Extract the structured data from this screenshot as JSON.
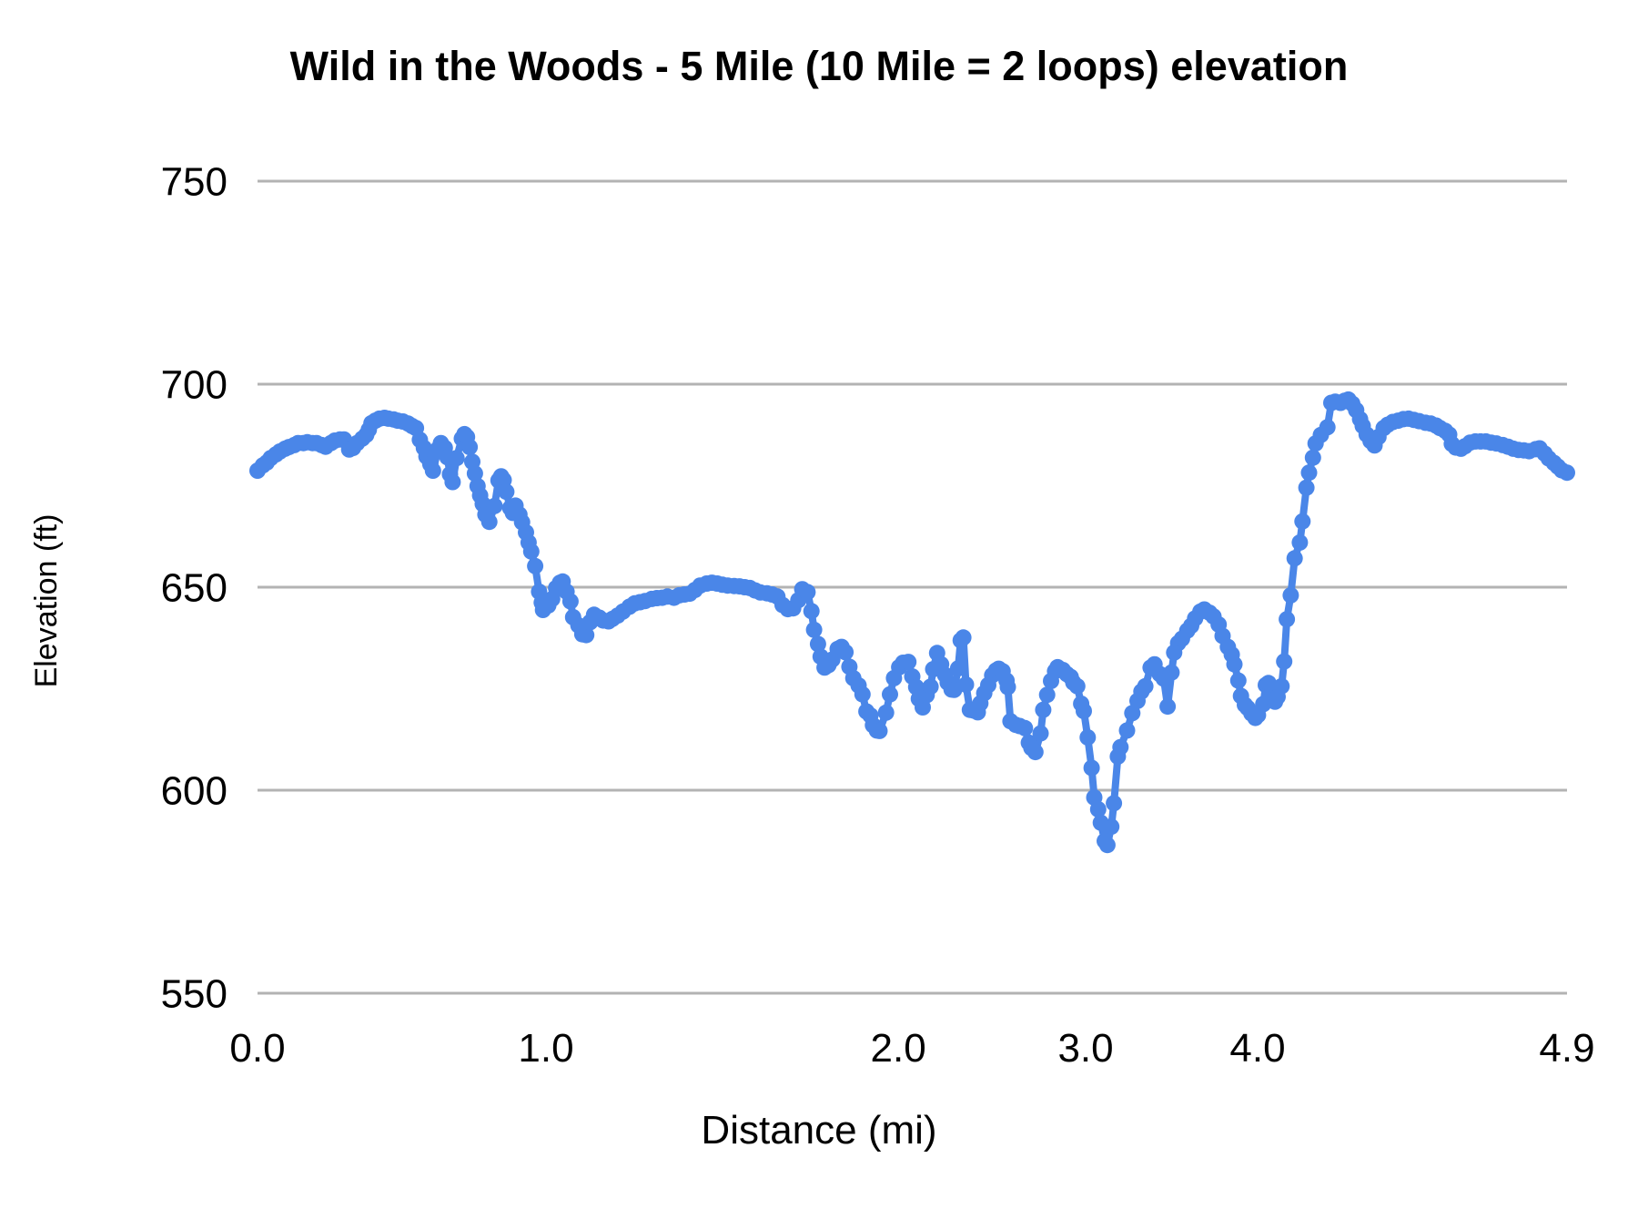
{
  "page": {
    "background": "#ffffff"
  },
  "chart_data": {
    "type": "line",
    "title": "Wild in the Woods - 5 Mile (10 Mile = 2 loops) elevation",
    "xlabel": "Distance (mi)",
    "ylabel": "Elevation (ft)",
    "ylim": [
      550,
      750
    ],
    "y_ticks": [
      550,
      600,
      650,
      700,
      750
    ],
    "x_ticks": [
      {
        "label": "0.0",
        "f": 0.0
      },
      {
        "label": "1.0",
        "f": 0.2203
      },
      {
        "label": "2.0",
        "f": 0.4893
      },
      {
        "label": "3.0",
        "f": 0.6324
      },
      {
        "label": "4.0",
        "f": 0.7637
      },
      {
        "label": "4.9",
        "f": 1.0
      }
    ],
    "legend": "none",
    "grid": true,
    "marker": "circle",
    "elevation_min_ft": 586,
    "elevation_max_ft": 696,
    "line_color": "#4a86e8",
    "grid_color": "#b3b3b3",
    "text_color": "#000000",
    "points": [
      [
        0.0,
        678.7
      ],
      [
        0.004,
        680.0
      ],
      [
        0.007,
        680.7
      ],
      [
        0.01,
        681.8
      ],
      [
        0.014,
        682.7
      ],
      [
        0.017,
        683.4
      ],
      [
        0.021,
        684.1
      ],
      [
        0.024,
        684.5
      ],
      [
        0.028,
        685.0
      ],
      [
        0.031,
        685.5
      ],
      [
        0.035,
        685.5
      ],
      [
        0.038,
        685.7
      ],
      [
        0.042,
        685.5
      ],
      [
        0.045,
        685.5
      ],
      [
        0.049,
        685.0
      ],
      [
        0.052,
        684.6
      ],
      [
        0.056,
        685.5
      ],
      [
        0.059,
        686.1
      ],
      [
        0.063,
        686.4
      ],
      [
        0.066,
        686.4
      ],
      [
        0.07,
        683.9
      ],
      [
        0.073,
        684.3
      ],
      [
        0.076,
        685.5
      ],
      [
        0.08,
        686.6
      ],
      [
        0.083,
        687.5
      ],
      [
        0.085,
        688.8
      ],
      [
        0.087,
        690.4
      ],
      [
        0.09,
        691.0
      ],
      [
        0.093,
        691.5
      ],
      [
        0.097,
        691.7
      ],
      [
        0.1,
        691.5
      ],
      [
        0.104,
        691.3
      ],
      [
        0.107,
        691.0
      ],
      [
        0.111,
        690.8
      ],
      [
        0.115,
        690.3
      ],
      [
        0.118,
        689.7
      ],
      [
        0.121,
        689.2
      ],
      [
        0.124,
        686.3
      ],
      [
        0.127,
        684.3
      ],
      [
        0.129,
        682.2
      ],
      [
        0.131,
        681.5
      ],
      [
        0.132,
        680.3
      ],
      [
        0.134,
        678.7
      ],
      [
        0.138,
        684.1
      ],
      [
        0.14,
        685.5
      ],
      [
        0.143,
        684.3
      ],
      [
        0.145,
        682.0
      ],
      [
        0.147,
        677.8
      ],
      [
        0.149,
        675.9
      ],
      [
        0.152,
        681.8
      ],
      [
        0.156,
        686.6
      ],
      [
        0.158,
        687.7
      ],
      [
        0.16,
        687.0
      ],
      [
        0.162,
        684.5
      ],
      [
        0.164,
        680.9
      ],
      [
        0.166,
        678.0
      ],
      [
        0.168,
        674.9
      ],
      [
        0.17,
        672.6
      ],
      [
        0.172,
        670.5
      ],
      [
        0.174,
        667.9
      ],
      [
        0.177,
        666.1
      ],
      [
        0.181,
        670.0
      ],
      [
        0.184,
        676.3
      ],
      [
        0.186,
        677.3
      ],
      [
        0.188,
        676.4
      ],
      [
        0.19,
        673.5
      ],
      [
        0.193,
        669.5
      ],
      [
        0.195,
        668.3
      ],
      [
        0.197,
        670.1
      ],
      [
        0.2,
        667.9
      ],
      [
        0.202,
        666.0
      ],
      [
        0.205,
        663.5
      ],
      [
        0.207,
        661.0
      ],
      [
        0.209,
        658.8
      ],
      [
        0.212,
        655.2
      ],
      [
        0.215,
        648.9
      ],
      [
        0.217,
        646.2
      ],
      [
        0.218,
        644.4
      ],
      [
        0.222,
        645.5
      ],
      [
        0.225,
        647.1
      ],
      [
        0.228,
        649.8
      ],
      [
        0.231,
        651.1
      ],
      [
        0.233,
        651.4
      ],
      [
        0.236,
        648.9
      ],
      [
        0.239,
        646.5
      ],
      [
        0.241,
        642.6
      ],
      [
        0.245,
        640.6
      ],
      [
        0.248,
        638.4
      ],
      [
        0.251,
        638.2
      ],
      [
        0.254,
        641.4
      ],
      [
        0.257,
        643.2
      ],
      [
        0.261,
        642.5
      ],
      [
        0.264,
        641.8
      ],
      [
        0.268,
        641.6
      ],
      [
        0.271,
        642.2
      ],
      [
        0.275,
        643.0
      ],
      [
        0.279,
        644.0
      ],
      [
        0.284,
        645.2
      ],
      [
        0.288,
        646.0
      ],
      [
        0.292,
        646.3
      ],
      [
        0.296,
        646.6
      ],
      [
        0.301,
        647.1
      ],
      [
        0.305,
        647.3
      ],
      [
        0.309,
        647.4
      ],
      [
        0.313,
        647.7
      ],
      [
        0.318,
        647.4
      ],
      [
        0.322,
        648.0
      ],
      [
        0.326,
        648.2
      ],
      [
        0.33,
        648.4
      ],
      [
        0.334,
        649.3
      ],
      [
        0.338,
        650.4
      ],
      [
        0.343,
        650.9
      ],
      [
        0.347,
        651.1
      ],
      [
        0.351,
        650.9
      ],
      [
        0.355,
        650.6
      ],
      [
        0.359,
        650.4
      ],
      [
        0.364,
        650.3
      ],
      [
        0.368,
        650.2
      ],
      [
        0.372,
        650.0
      ],
      [
        0.376,
        649.8
      ],
      [
        0.38,
        649.2
      ],
      [
        0.384,
        648.7
      ],
      [
        0.389,
        648.5
      ],
      [
        0.393,
        648.2
      ],
      [
        0.397,
        647.7
      ],
      [
        0.401,
        645.6
      ],
      [
        0.405,
        644.6
      ],
      [
        0.409,
        644.8
      ],
      [
        0.413,
        646.8
      ],
      [
        0.416,
        649.5
      ],
      [
        0.42,
        648.8
      ],
      [
        0.423,
        644.1
      ],
      [
        0.425,
        639.5
      ],
      [
        0.428,
        636.0
      ],
      [
        0.43,
        632.9
      ],
      [
        0.433,
        630.2
      ],
      [
        0.436,
        630.8
      ],
      [
        0.439,
        632.2
      ],
      [
        0.443,
        634.8
      ],
      [
        0.446,
        635.3
      ],
      [
        0.449,
        634.0
      ],
      [
        0.452,
        630.4
      ],
      [
        0.455,
        627.6
      ],
      [
        0.459,
        625.8
      ],
      [
        0.462,
        623.6
      ],
      [
        0.465,
        619.4
      ],
      [
        0.468,
        618.4
      ],
      [
        0.47,
        616.0
      ],
      [
        0.473,
        614.7
      ],
      [
        0.475,
        614.6
      ],
      [
        0.48,
        619.1
      ],
      [
        0.483,
        623.6
      ],
      [
        0.486,
        627.6
      ],
      [
        0.49,
        630.3
      ],
      [
        0.493,
        631.4
      ],
      [
        0.497,
        631.6
      ],
      [
        0.5,
        628.0
      ],
      [
        0.503,
        625.4
      ],
      [
        0.505,
        622.5
      ],
      [
        0.508,
        620.4
      ],
      [
        0.511,
        623.4
      ],
      [
        0.514,
        625.5
      ],
      [
        0.516,
        629.8
      ],
      [
        0.519,
        633.8
      ],
      [
        0.522,
        631.0
      ],
      [
        0.525,
        628.4
      ],
      [
        0.527,
        626.5
      ],
      [
        0.53,
        624.8
      ],
      [
        0.532,
        624.7
      ],
      [
        0.535,
        630.0
      ],
      [
        0.537,
        636.9
      ],
      [
        0.539,
        637.6
      ],
      [
        0.541,
        626.0
      ],
      [
        0.544,
        619.8
      ],
      [
        0.547,
        619.6
      ],
      [
        0.55,
        619.2
      ],
      [
        0.552,
        621.4
      ],
      [
        0.555,
        623.9
      ],
      [
        0.558,
        625.9
      ],
      [
        0.561,
        628.3
      ],
      [
        0.564,
        629.5
      ],
      [
        0.566,
        629.9
      ],
      [
        0.569,
        629.3
      ],
      [
        0.572,
        627.0
      ],
      [
        0.573,
        625.4
      ],
      [
        0.575,
        617.0
      ],
      [
        0.579,
        616.1
      ],
      [
        0.582,
        615.8
      ],
      [
        0.586,
        615.3
      ],
      [
        0.589,
        611.7
      ],
      [
        0.591,
        610.4
      ],
      [
        0.594,
        609.4
      ],
      [
        0.598,
        614.0
      ],
      [
        0.6,
        619.8
      ],
      [
        0.603,
        623.5
      ],
      [
        0.606,
        626.9
      ],
      [
        0.609,
        629.3
      ],
      [
        0.611,
        630.3
      ],
      [
        0.615,
        629.6
      ],
      [
        0.618,
        628.6
      ],
      [
        0.621,
        627.9
      ],
      [
        0.623,
        626.5
      ],
      [
        0.626,
        625.6
      ],
      [
        0.629,
        621.3
      ],
      [
        0.631,
        619.5
      ],
      [
        0.634,
        613.0
      ],
      [
        0.637,
        605.5
      ],
      [
        0.639,
        598.2
      ],
      [
        0.642,
        595.3
      ],
      [
        0.644,
        592.0
      ],
      [
        0.647,
        587.5
      ],
      [
        0.649,
        586.5
      ],
      [
        0.652,
        591.0
      ],
      [
        0.654,
        596.8
      ],
      [
        0.657,
        608.3
      ],
      [
        0.659,
        610.6
      ],
      [
        0.664,
        614.7
      ],
      [
        0.668,
        619.0
      ],
      [
        0.672,
        622.0
      ],
      [
        0.675,
        624.3
      ],
      [
        0.678,
        625.6
      ],
      [
        0.682,
        630.2
      ],
      [
        0.685,
        631.0
      ],
      [
        0.689,
        628.6
      ],
      [
        0.692,
        627.5
      ],
      [
        0.695,
        620.6
      ],
      [
        0.698,
        629.0
      ],
      [
        0.7,
        633.9
      ],
      [
        0.703,
        636.2
      ],
      [
        0.706,
        637.3
      ],
      [
        0.71,
        639.3
      ],
      [
        0.713,
        640.5
      ],
      [
        0.716,
        642.3
      ],
      [
        0.72,
        644.0
      ],
      [
        0.723,
        644.5
      ],
      [
        0.727,
        643.7
      ],
      [
        0.73,
        642.8
      ],
      [
        0.734,
        640.8
      ],
      [
        0.737,
        638.0
      ],
      [
        0.741,
        635.3
      ],
      [
        0.744,
        633.4
      ],
      [
        0.746,
        631.0
      ],
      [
        0.749,
        627.0
      ],
      [
        0.751,
        623.2
      ],
      [
        0.754,
        621.0
      ],
      [
        0.756,
        620.3
      ],
      [
        0.759,
        618.9
      ],
      [
        0.762,
        617.8
      ],
      [
        0.764,
        618.5
      ],
      [
        0.768,
        621.2
      ],
      [
        0.77,
        625.9
      ],
      [
        0.772,
        626.4
      ],
      [
        0.775,
        624.1
      ],
      [
        0.777,
        621.8
      ],
      [
        0.779,
        623.0
      ],
      [
        0.782,
        625.6
      ],
      [
        0.784,
        631.7
      ],
      [
        0.786,
        642.1
      ],
      [
        0.789,
        648.0
      ],
      [
        0.792,
        657.1
      ],
      [
        0.796,
        661.0
      ],
      [
        0.798,
        666.2
      ],
      [
        0.801,
        674.5
      ],
      [
        0.803,
        678.2
      ],
      [
        0.806,
        681.9
      ],
      [
        0.808,
        685.4
      ],
      [
        0.812,
        687.5
      ],
      [
        0.817,
        689.4
      ],
      [
        0.82,
        695.4
      ],
      [
        0.823,
        695.7
      ],
      [
        0.827,
        695.4
      ],
      [
        0.83,
        695.9
      ],
      [
        0.833,
        696.2
      ],
      [
        0.836,
        695.2
      ],
      [
        0.839,
        693.6
      ],
      [
        0.842,
        691.4
      ],
      [
        0.844,
        689.7
      ],
      [
        0.847,
        687.6
      ],
      [
        0.85,
        686.0
      ],
      [
        0.853,
        684.9
      ],
      [
        0.856,
        687.0
      ],
      [
        0.86,
        689.2
      ],
      [
        0.863,
        690.0
      ],
      [
        0.867,
        690.7
      ],
      [
        0.871,
        691.0
      ],
      [
        0.875,
        691.4
      ],
      [
        0.879,
        691.5
      ],
      [
        0.883,
        691.2
      ],
      [
        0.887,
        690.9
      ],
      [
        0.892,
        690.5
      ],
      [
        0.896,
        690.3
      ],
      [
        0.9,
        689.8
      ],
      [
        0.903,
        689.2
      ],
      [
        0.907,
        688.5
      ],
      [
        0.91,
        687.6
      ],
      [
        0.912,
        685.3
      ],
      [
        0.915,
        684.4
      ],
      [
        0.919,
        684.1
      ],
      [
        0.922,
        684.7
      ],
      [
        0.926,
        685.6
      ],
      [
        0.93,
        685.9
      ],
      [
        0.934,
        685.9
      ],
      [
        0.938,
        685.9
      ],
      [
        0.942,
        685.6
      ],
      [
        0.946,
        685.4
      ],
      [
        0.951,
        685.0
      ],
      [
        0.955,
        684.6
      ],
      [
        0.959,
        684.1
      ],
      [
        0.963,
        683.8
      ],
      [
        0.967,
        683.7
      ],
      [
        0.971,
        683.5
      ],
      [
        0.976,
        684.0
      ],
      [
        0.979,
        684.2
      ],
      [
        0.983,
        682.9
      ],
      [
        0.986,
        681.7
      ],
      [
        0.99,
        680.6
      ],
      [
        0.993,
        679.7
      ],
      [
        0.996,
        678.8
      ],
      [
        1.0,
        678.2
      ]
    ]
  }
}
